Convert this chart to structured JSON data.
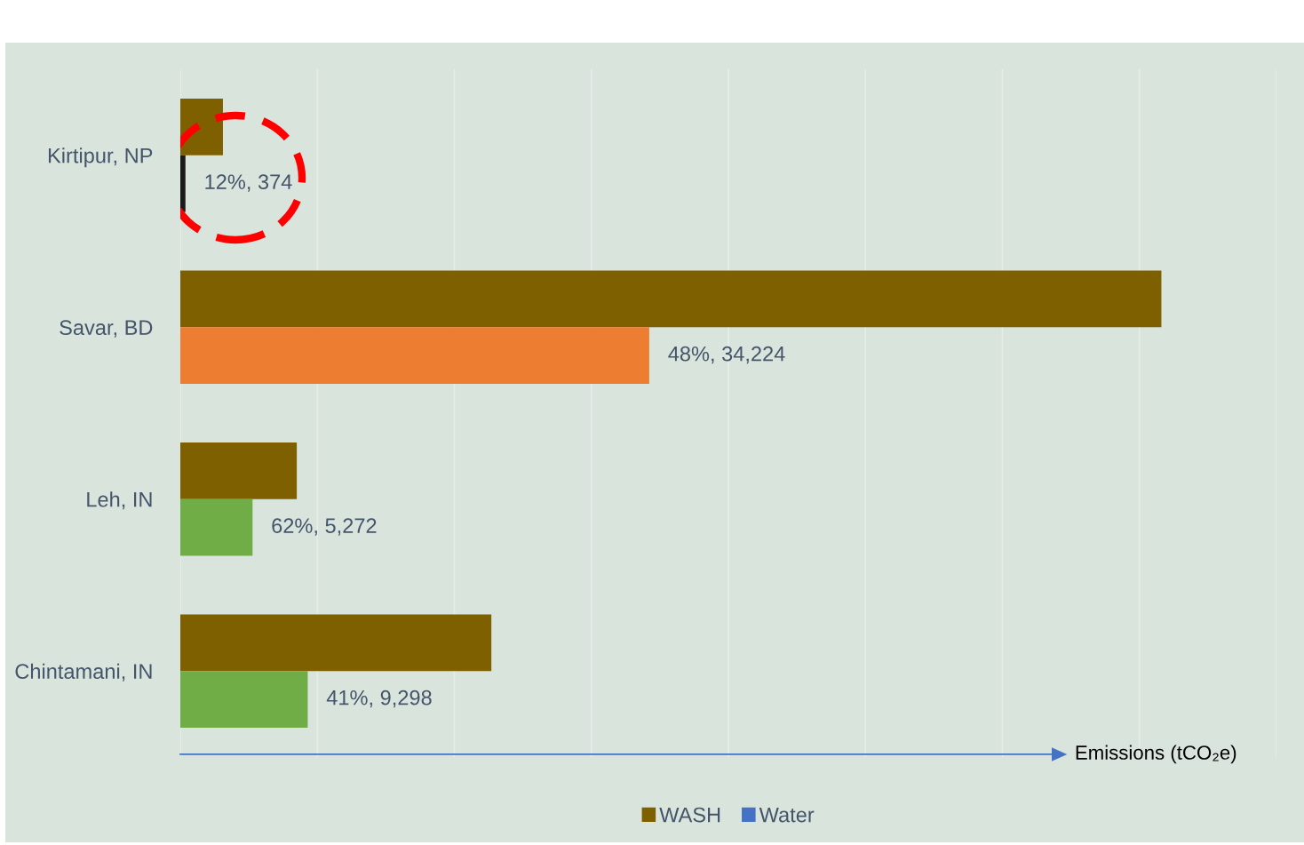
{
  "chart_data": {
    "type": "bar",
    "orientation": "horizontal",
    "xlabel": "Emissions (tCO₂e)",
    "categories": [
      "Kirtipur, NP",
      "Savar, BD",
      "Leh, IN",
      "Chintamani, IN"
    ],
    "series": [
      {
        "name": "WASH",
        "color": "#7f6000",
        "values": [
          3110,
          71600,
          8500,
          22700
        ]
      },
      {
        "name": "Water",
        "color": "#4472c4",
        "colors": [
          "#1a1a1a",
          "#ed7d31",
          "#70ad47",
          "#70ad47"
        ],
        "values": [
          374,
          34224,
          5272,
          9298
        ],
        "value_labels": [
          "12%, 374",
          "48%, 34,224",
          "62%, 5,272",
          "41%, 9,298"
        ]
      }
    ],
    "xlim": [
      0,
      80000
    ],
    "xticks": [
      {
        "value": 0,
        "label": null
      },
      {
        "value": 10000,
        "label": null
      },
      {
        "value": 20000,
        "label": null
      },
      {
        "value": 30000,
        "label": null
      },
      {
        "value": 40000,
        "label": null
      },
      {
        "value": 50000,
        "label": null
      },
      {
        "value": 60000,
        "label": null
      },
      {
        "value": 70000,
        "label": null
      },
      {
        "value": 80000,
        "label": null
      }
    ],
    "grid": "x",
    "legend": "bottom",
    "tick_labels": "y"
  }
}
